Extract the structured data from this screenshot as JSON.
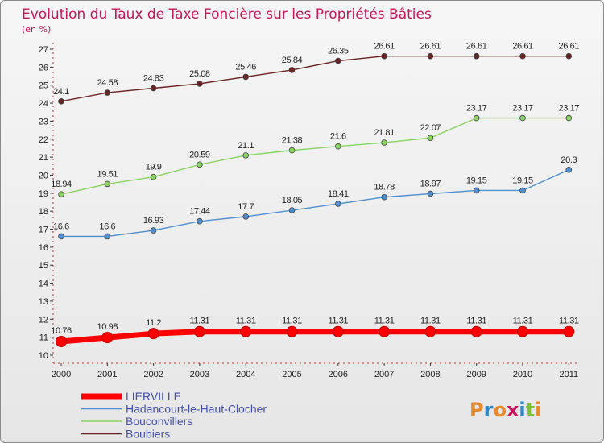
{
  "title": "Evolution du Taux de Taxe Foncière sur les Propriétés Bâties",
  "subtitle": "(en %)",
  "logo": {
    "text": "Proxiti",
    "colors": [
      "#e8892a",
      "#2f86c8",
      "#e8892a",
      "#c8145a",
      "#2f86c8",
      "#7fbf3a",
      "#e8892a"
    ]
  },
  "chart_data": {
    "type": "line",
    "title": "Evolution du Taux de Taxe Foncière sur les Propriétés Bâties",
    "unit": "(en %)",
    "categories": [
      "2000",
      "2001",
      "2002",
      "2003",
      "2004",
      "2005",
      "2006",
      "2007",
      "2008",
      "2009",
      "2010",
      "2011"
    ],
    "yticks": [
      10,
      11,
      12,
      13,
      14,
      15,
      16,
      17,
      18,
      19,
      20,
      21,
      22,
      23,
      24,
      25,
      26,
      27
    ],
    "ylim": [
      10,
      27
    ],
    "grid": false,
    "legend_position": "bottom-left",
    "series": [
      {
        "name": "LIERVILLE",
        "color": "#ff0000",
        "values": [
          10.76,
          10.98,
          11.2,
          11.31,
          11.31,
          11.31,
          11.31,
          11.31,
          11.31,
          11.31,
          11.31,
          11.31
        ],
        "labels": [
          "10.76",
          "10.98",
          "11.2",
          "11.31",
          "11.31",
          "11.31",
          "11.31",
          "11.31",
          "11.31",
          "11.31",
          "11.31",
          "11.31"
        ]
      },
      {
        "name": "Hadancourt-le-Haut-Clocher",
        "color": "#4f8fd0",
        "values": [
          16.6,
          16.6,
          16.93,
          17.44,
          17.7,
          18.05,
          18.41,
          18.78,
          18.97,
          19.15,
          19.15,
          20.3
        ],
        "labels": [
          "16.6",
          "16.6",
          "16.93",
          "17.44",
          "17.7",
          "18.05",
          "18.41",
          "18.78",
          "18.97",
          "19.15",
          "19.15",
          "20.3"
        ]
      },
      {
        "name": "Bouconvillers",
        "color": "#88d460",
        "values": [
          18.94,
          19.51,
          19.9,
          20.59,
          21.1,
          21.38,
          21.6,
          21.81,
          22.07,
          23.17,
          23.17,
          23.17
        ],
        "labels": [
          "18.94",
          "19.51",
          "19.9",
          "20.59",
          "21.1",
          "21.38",
          "21.6",
          "21.81",
          "22.07",
          "23.17",
          "23.17",
          "23.17"
        ]
      },
      {
        "name": "Boubiers",
        "color": "#6b2424",
        "values": [
          24.1,
          24.58,
          24.83,
          25.08,
          25.46,
          25.84,
          26.35,
          26.61,
          26.61,
          26.61,
          26.61,
          26.61
        ],
        "labels": [
          "24.1",
          "24.58",
          "24.83",
          "25.08",
          "25.46",
          "25.84",
          "26.35",
          "26.61",
          "26.61",
          "26.61",
          "26.61",
          "26.61"
        ]
      }
    ]
  }
}
